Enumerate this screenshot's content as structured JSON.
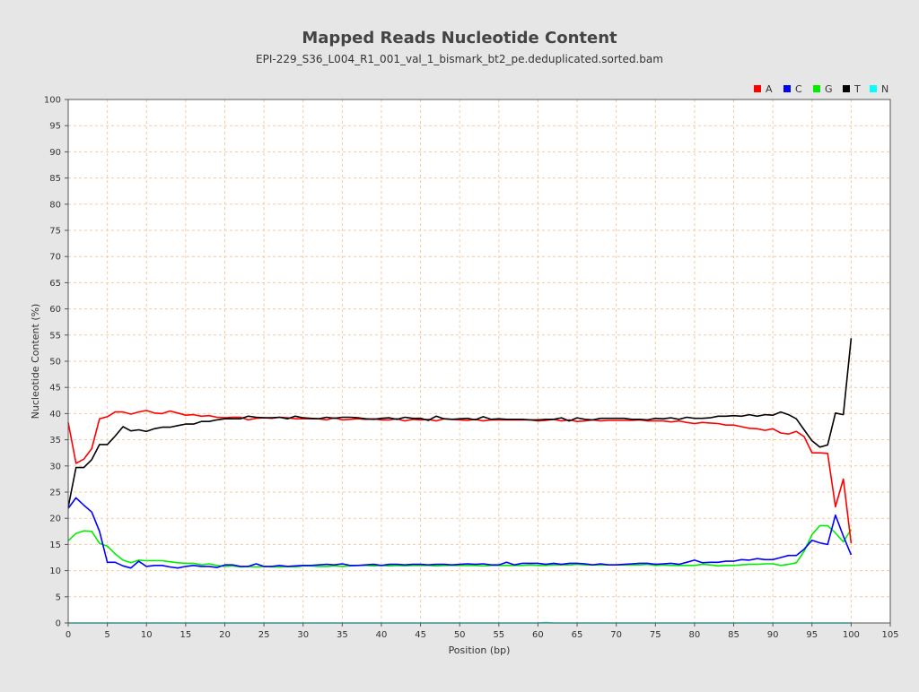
{
  "chart_data": {
    "type": "line",
    "title": "Mapped Reads Nucleotide Content",
    "subtitle": "EPI-229_S36_L004_R1_001_val_1_bismark_bt2_pe.deduplicated.sorted.bam",
    "xlabel": "Position (bp)",
    "ylabel": "Nucleotide Content (%)",
    "xlim": [
      0,
      105
    ],
    "ylim": [
      0,
      100
    ],
    "xticks": [
      "0",
      "5",
      "10",
      "15",
      "20",
      "25",
      "30",
      "35",
      "40",
      "45",
      "50",
      "55",
      "60",
      "65",
      "70",
      "75",
      "80",
      "85",
      "90",
      "95",
      "100",
      "105"
    ],
    "yticks": [
      "0",
      "5",
      "10",
      "15",
      "20",
      "25",
      "30",
      "35",
      "40",
      "45",
      "50",
      "55",
      "60",
      "65",
      "70",
      "75",
      "80",
      "85",
      "90",
      "95",
      "100"
    ],
    "grid": true,
    "legend_position": "top-right",
    "x": [
      0,
      1,
      2,
      3,
      4,
      5,
      6,
      7,
      8,
      9,
      10,
      11,
      12,
      13,
      14,
      15,
      16,
      17,
      18,
      19,
      20,
      21,
      22,
      23,
      24,
      25,
      26,
      27,
      28,
      29,
      30,
      31,
      32,
      33,
      34,
      35,
      36,
      37,
      38,
      39,
      40,
      41,
      42,
      43,
      44,
      45,
      46,
      47,
      48,
      49,
      50,
      51,
      52,
      53,
      54,
      55,
      56,
      57,
      58,
      59,
      60,
      61,
      62,
      63,
      64,
      65,
      66,
      67,
      68,
      69,
      70,
      71,
      72,
      73,
      74,
      75,
      76,
      77,
      78,
      79,
      80,
      81,
      82,
      83,
      84,
      85,
      86,
      87,
      88,
      89,
      90,
      91,
      92,
      93,
      94,
      95,
      96,
      97,
      98,
      99,
      100
    ],
    "series": [
      {
        "name": "A",
        "color": "#ff0000",
        "values": [
          38.3,
          30.5,
          31.3,
          33.3,
          39.0,
          39.4,
          40.3,
          40.3,
          39.9,
          40.3,
          40.6,
          40.1,
          40.0,
          40.5,
          40.1,
          39.7,
          39.8,
          39.5,
          39.6,
          39.3,
          39.2,
          39.3,
          39.3,
          38.8,
          39.1,
          39.2,
          39.1,
          39.3,
          39.2,
          39.0,
          39.0,
          39.0,
          39.0,
          38.8,
          39.2,
          38.8,
          38.9,
          39.0,
          38.9,
          39.0,
          38.8,
          38.8,
          39.0,
          38.6,
          38.9,
          38.8,
          38.9,
          38.6,
          39.0,
          38.9,
          38.8,
          38.7,
          38.9,
          38.6,
          38.8,
          38.8,
          38.8,
          38.8,
          38.8,
          38.8,
          38.6,
          38.7,
          38.9,
          38.6,
          38.8,
          38.5,
          38.6,
          38.8,
          38.6,
          38.7,
          38.7,
          38.7,
          38.7,
          38.8,
          38.6,
          38.6,
          38.6,
          38.4,
          38.6,
          38.3,
          38.1,
          38.3,
          38.2,
          38.1,
          37.8,
          37.8,
          37.5,
          37.2,
          37.1,
          36.8,
          37.1,
          36.3,
          36.1,
          36.6,
          35.6,
          32.5,
          32.5,
          32.4,
          22.2,
          27.5,
          15.2
        ]
      },
      {
        "name": "C",
        "color": "#0000ff",
        "values": [
          21.9,
          23.9,
          22.5,
          21.2,
          17.5,
          11.6,
          11.6,
          10.9,
          10.5,
          11.8,
          10.8,
          11.0,
          11.0,
          10.7,
          10.5,
          10.8,
          11.0,
          10.8,
          10.8,
          10.6,
          11.1,
          11.1,
          10.8,
          10.8,
          11.3,
          10.8,
          10.8,
          11.0,
          10.8,
          10.9,
          11.0,
          11.0,
          11.1,
          11.2,
          11.1,
          11.3,
          11.0,
          11.0,
          11.1,
          11.2,
          11.0,
          11.2,
          11.2,
          11.1,
          11.2,
          11.2,
          11.1,
          11.2,
          11.2,
          11.1,
          11.2,
          11.3,
          11.2,
          11.3,
          11.1,
          11.1,
          11.6,
          11.1,
          11.4,
          11.4,
          11.4,
          11.2,
          11.4,
          11.2,
          11.4,
          11.4,
          11.3,
          11.1,
          11.3,
          11.1,
          11.1,
          11.2,
          11.3,
          11.4,
          11.4,
          11.2,
          11.3,
          11.4,
          11.2,
          11.6,
          12.0,
          11.5,
          11.6,
          11.6,
          11.8,
          11.8,
          12.1,
          12.0,
          12.3,
          12.1,
          12.1,
          12.5,
          12.9,
          12.9,
          14.1,
          15.8,
          15.3,
          15.0,
          20.6,
          16.6,
          13.0
        ]
      },
      {
        "name": "G",
        "color": "#00ee00",
        "values": [
          15.7,
          17.1,
          17.6,
          17.5,
          15.2,
          14.7,
          13.2,
          12.0,
          11.5,
          12.0,
          11.9,
          11.9,
          11.9,
          11.7,
          11.5,
          11.4,
          11.4,
          11.1,
          11.3,
          11.0,
          10.8,
          10.9,
          10.7,
          10.8,
          10.7,
          10.8,
          10.7,
          10.7,
          10.8,
          10.7,
          10.9,
          10.9,
          10.8,
          10.8,
          10.9,
          10.8,
          10.9,
          11.0,
          11.0,
          10.9,
          11.0,
          10.9,
          11.0,
          10.9,
          11.0,
          11.0,
          11.0,
          10.9,
          11.0,
          11.0,
          11.0,
          11.0,
          11.0,
          10.9,
          11.0,
          11.0,
          11.0,
          11.0,
          11.0,
          11.1,
          11.0,
          11.0,
          11.1,
          11.1,
          11.1,
          11.2,
          11.1,
          11.1,
          11.1,
          11.1,
          11.1,
          11.1,
          11.1,
          11.1,
          11.2,
          11.0,
          11.1,
          11.0,
          11.0,
          11.0,
          11.0,
          11.2,
          11.1,
          10.9,
          11.0,
          11.0,
          11.1,
          11.2,
          11.2,
          11.3,
          11.3,
          11.0,
          11.2,
          11.5,
          13.7,
          16.9,
          18.6,
          18.6,
          17.2,
          15.5,
          17.9
        ]
      },
      {
        "name": "T",
        "color": "#000000",
        "values": [
          22.1,
          29.7,
          29.7,
          31.2,
          34.1,
          34.1,
          35.7,
          37.5,
          36.7,
          36.9,
          36.6,
          37.1,
          37.4,
          37.4,
          37.7,
          38.0,
          38.0,
          38.5,
          38.5,
          38.8,
          39.0,
          39.0,
          39.0,
          39.5,
          39.3,
          39.2,
          39.2,
          39.3,
          39.0,
          39.5,
          39.2,
          39.1,
          39.0,
          39.3,
          39.1,
          39.3,
          39.3,
          39.2,
          39.0,
          38.9,
          39.1,
          39.2,
          38.9,
          39.3,
          39.1,
          39.1,
          38.7,
          39.5,
          39.0,
          38.9,
          39.0,
          39.1,
          38.8,
          39.4,
          38.9,
          39.0,
          38.9,
          38.9,
          38.9,
          38.8,
          38.8,
          38.9,
          38.9,
          39.2,
          38.6,
          39.2,
          38.9,
          38.8,
          39.1,
          39.1,
          39.1,
          39.1,
          38.9,
          38.9,
          38.8,
          39.1,
          39.0,
          39.2,
          38.9,
          39.3,
          39.1,
          39.1,
          39.2,
          39.5,
          39.5,
          39.6,
          39.5,
          39.8,
          39.5,
          39.8,
          39.7,
          40.3,
          39.8,
          39.0,
          36.9,
          34.8,
          33.6,
          34.0,
          40.1,
          39.8,
          54.4
        ]
      },
      {
        "name": "N",
        "color": "#00ffff",
        "values": [
          0,
          0,
          0,
          0,
          0,
          0,
          0,
          0,
          0,
          0,
          0,
          0,
          0,
          0,
          0,
          0,
          0,
          0,
          0,
          0,
          0,
          0,
          0,
          0,
          0,
          0,
          0,
          0,
          0,
          0,
          0,
          0,
          0,
          0,
          0,
          0,
          0,
          0,
          0,
          0,
          0,
          0,
          0,
          0,
          0,
          0,
          0,
          0,
          0,
          0,
          0,
          0,
          0,
          0,
          0,
          0,
          0,
          0,
          0,
          0,
          0,
          0.1,
          0,
          0,
          0,
          0,
          0,
          0,
          0,
          0,
          0,
          0,
          0,
          0,
          0,
          0,
          0,
          0,
          0,
          0,
          0,
          0,
          0,
          0,
          0,
          0,
          0,
          0,
          0,
          0,
          0,
          0,
          0,
          0,
          0,
          0,
          0,
          0,
          0,
          0,
          0
        ]
      }
    ]
  },
  "colors": {
    "background": "#e6e6e6",
    "plot_background": "#ffffff",
    "grid": "#f5c9a0"
  }
}
